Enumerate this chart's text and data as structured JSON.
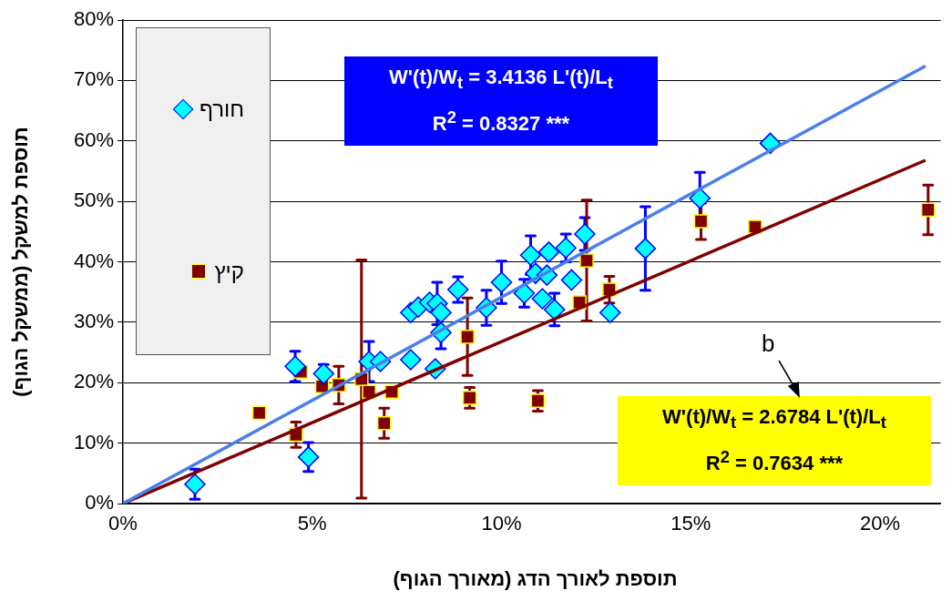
{
  "chart_data": {
    "type": "scatter",
    "xlabel": "תוספת לאורך הדג (מאורך הגוף)",
    "ylabel": "תוספת למשקל (ממשקל הגוף)",
    "xlim": [
      0,
      21.6
    ],
    "ylim": [
      0,
      80
    ],
    "xticks": [
      {
        "value": 0,
        "label": "0%"
      },
      {
        "value": 5,
        "label": "5%"
      },
      {
        "value": 10,
        "label": "10%"
      },
      {
        "value": 15,
        "label": "15%"
      },
      {
        "value": 20,
        "label": "20%"
      }
    ],
    "yticks": [
      {
        "value": 0,
        "label": "0%"
      },
      {
        "value": 10,
        "label": "10%"
      },
      {
        "value": 20,
        "label": "20%"
      },
      {
        "value": 30,
        "label": "30%"
      },
      {
        "value": 40,
        "label": "40%"
      },
      {
        "value": 50,
        "label": "50%"
      },
      {
        "value": 60,
        "label": "60%"
      },
      {
        "value": 70,
        "label": "70%"
      },
      {
        "value": 80,
        "label": "80%"
      }
    ],
    "grid": "y",
    "legend": "top left",
    "series": [
      {
        "name": "חורף",
        "color": "#00ffff",
        "marker": "diamond",
        "x": [
          1.9,
          4.55,
          4.9,
          5.3,
          6.5,
          6.8,
          7.6,
          8.25,
          7.6,
          7.8,
          8.1,
          8.3,
          8.4,
          8.4,
          8.85,
          9.6,
          10.0,
          10.6,
          10.77,
          10.9,
          11.08,
          11.2,
          11.25,
          11.4,
          11.7,
          11.85,
          12.2,
          12.87,
          13.8,
          15.24,
          17.1
        ],
        "values": [
          3.2,
          22.7,
          7.7,
          21.5,
          23.5,
          23.5,
          23.8,
          22.3,
          31.6,
          32.5,
          33.3,
          33.1,
          31.6,
          28.3,
          35.4,
          32.4,
          36.6,
          34.8,
          41.1,
          38.1,
          33.9,
          37.8,
          41.6,
          32.1,
          42.3,
          37.0,
          44.6,
          31.6,
          42.2,
          50.5,
          59.6
        ],
        "errors": [
          2.5,
          2.5,
          2.4,
          1.5,
          3.3,
          null,
          null,
          null,
          null,
          null,
          null,
          3.5,
          null,
          2.7,
          2.1,
          2.9,
          3.5,
          2.3,
          3.2,
          null,
          null,
          null,
          null,
          2.7,
          2.3,
          null,
          2.7,
          null,
          6.9,
          4.3,
          null
        ]
      },
      {
        "name": "קיץ",
        "color": "#800000",
        "marker": "square",
        "x": [
          3.6,
          4.57,
          4.7,
          5.26,
          5.7,
          6.3,
          6.5,
          6.9,
          7.1,
          9.1,
          9.16,
          10.96,
          12.06,
          12.25,
          12.85,
          15.27,
          16.7,
          21.27
        ],
        "values": [
          15.0,
          11.4,
          21.8,
          19.4,
          19.6,
          20.6,
          18.5,
          13.3,
          18.5,
          27.6,
          17.5,
          17.0,
          33.3,
          40.2,
          35.4,
          46.7,
          45.8,
          48.6
        ],
        "errors": [
          null,
          2.1,
          null,
          null,
          3.1,
          19.7,
          null,
          2.5,
          null,
          6.4,
          1.7,
          1.7,
          null,
          10,
          2.2,
          3,
          null,
          4.1
        ]
      },
      {
        "type": "line",
        "color": "#4a7fea",
        "marker": "none",
        "x": [
          0,
          21.2
        ],
        "values": [
          0,
          72.4
        ]
      },
      {
        "type": "line",
        "color": "#800000",
        "marker": "none",
        "x": [
          0,
          21.2
        ],
        "values": [
          0,
          56.8
        ]
      }
    ],
    "annotations": [
      "W'(t)/W$_{t}$ = 3.4136 L'(t)/L$_{t}$",
      "R$^{2}$ = 0.8327 ***",
      "W'(t)/W$_{t}$ = 2.6784 L'(t)/L$_{t}$",
      "R$^{2}$ = 0.7634 ***",
      "b"
    ]
  }
}
